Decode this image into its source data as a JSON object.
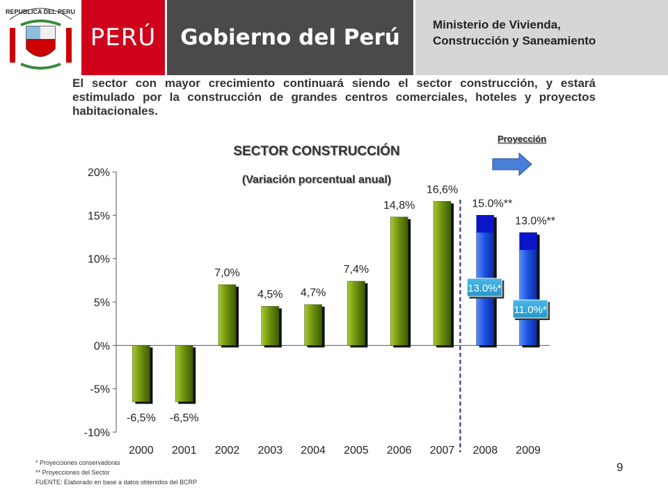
{
  "header": {
    "seal_text": "REPUBLICA DEL PERU",
    "brand": "PERÚ",
    "government": "Gobierno del Perú",
    "ministry_line1": "Ministerio de Vivienda,",
    "ministry_line2": "Construcción y Saneamiento"
  },
  "intro": "El sector con mayor crecimiento continuará siendo el sector construcción, y estará estimulado por la construcción de grandes centros comerciales, hoteles y proyectos habitacionales.",
  "projection_label": "Proyección",
  "footnotes": [
    "* Proyecciones conservadoras",
    "** Proyecciones del Sector",
    "FUENTE: Elaborado en base a datos obtenidos del BCRP"
  ],
  "page_number": "9",
  "colors": {
    "actual": "#6b8e0a",
    "projected": "#1a4fe0",
    "projected_top": "#0a14c8",
    "label_box": "#2596c8",
    "brand_red": "#d0021b"
  },
  "chart_data": {
    "type": "bar",
    "title": "SECTOR CONSTRUCCIÓN",
    "subtitle": "(Variación porcentual anual)",
    "categories": [
      "2000",
      "2001",
      "2002",
      "2003",
      "2004",
      "2005",
      "2006",
      "2007",
      "2008",
      "2009"
    ],
    "values": [
      -6.5,
      -6.5,
      7.0,
      4.5,
      4.7,
      7.4,
      14.8,
      16.6,
      15.0,
      13.0
    ],
    "value_labels": [
      "-6,5%",
      "-6,5%",
      "7,0%",
      "4,5%",
      "4,7%",
      "7,4%",
      "14,8%",
      "16,6%",
      "15.0%**",
      "13.0%**"
    ],
    "conservative_values": [
      null,
      null,
      null,
      null,
      null,
      null,
      null,
      null,
      13.0,
      11.0
    ],
    "conservative_labels": [
      null,
      null,
      null,
      null,
      null,
      null,
      null,
      null,
      "13.0%*",
      "11.0%*"
    ],
    "projected": [
      false,
      false,
      false,
      false,
      false,
      false,
      false,
      false,
      true,
      true
    ],
    "ylim": [
      -10,
      20
    ],
    "yticks": [
      20,
      15,
      10,
      5,
      0,
      -5,
      -10
    ],
    "ytick_labels": [
      "20%",
      "15%",
      "10%",
      "5%",
      "0%",
      "-5%",
      "-10%"
    ],
    "xlabel": "",
    "ylabel": "",
    "grid": false
  }
}
